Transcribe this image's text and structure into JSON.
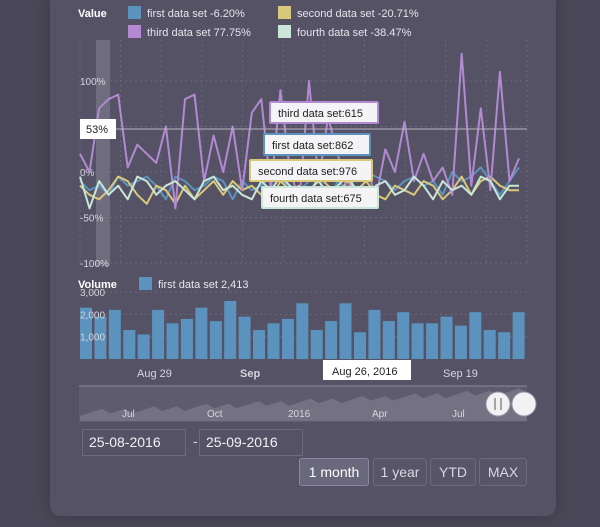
{
  "chart_data": [
    {
      "type": "line",
      "title": "Value",
      "ylabel": "",
      "yticks": [
        "100%",
        "0%",
        "-50%",
        "-100%"
      ],
      "ylim": [
        -100,
        100
      ],
      "crosshair_value_label": "53%",
      "series": [
        {
          "name": "first data set",
          "change": "-6.20%",
          "color": "#5b93be",
          "values": [
            -10,
            -20,
            -15,
            -25,
            -5,
            -15,
            -10,
            -5,
            -15,
            -30,
            -5,
            -10,
            -20,
            -15,
            -5,
            -10,
            -30,
            -10,
            -20,
            -15,
            -5,
            -10,
            -15,
            -20,
            -10,
            -5,
            -30,
            -10,
            -20,
            -5,
            0,
            -5,
            -10,
            -20,
            -10,
            -5,
            -15,
            -10,
            -25,
            0,
            -10,
            -5,
            5,
            -10,
            -25,
            -10,
            5
          ]
        },
        {
          "name": "second data set",
          "change": "-20.71%",
          "color": "#d9c87a",
          "values": [
            -15,
            -25,
            -30,
            -20,
            -5,
            -10,
            -25,
            -35,
            -15,
            -20,
            -35,
            -15,
            -30,
            -20,
            -10,
            -25,
            -10,
            -20,
            -15,
            -25,
            -30,
            -10,
            -20,
            -15,
            -25,
            -5,
            -15,
            -25,
            -10,
            -20,
            -10,
            -25,
            -30,
            -15,
            -20,
            -25,
            -10,
            -15,
            -30,
            -20,
            -5,
            -25,
            -10,
            -5,
            -15,
            -20,
            -20
          ]
        },
        {
          "name": "third data set",
          "change": "77.75%",
          "color": "#b38ad2",
          "values": [
            20,
            0,
            70,
            80,
            85,
            5,
            30,
            20,
            10,
            50,
            -40,
            80,
            85,
            -10,
            40,
            0,
            50,
            -20,
            65,
            80,
            -20,
            90,
            0,
            -30,
            100,
            -10,
            60,
            20,
            -20,
            5,
            10,
            -30,
            25,
            0,
            55,
            -10,
            20,
            -10,
            5,
            -25,
            130,
            -15,
            70,
            -20,
            110,
            -10,
            15
          ]
        },
        {
          "name": "fourth data set",
          "change": "-38.47%",
          "color": "#c9e6d8",
          "values": [
            -5,
            -40,
            -10,
            -25,
            -15,
            -30,
            -5,
            -10,
            -25,
            -15,
            -10,
            -20,
            -30,
            -10,
            -5,
            -20,
            -15,
            -25,
            -30,
            -10,
            -20,
            -5,
            -15,
            -30,
            -20,
            -10,
            -25,
            -15,
            -5,
            -20,
            -30,
            -15,
            -10,
            -25,
            -20,
            -5,
            -15,
            -30,
            -10,
            -20,
            -15,
            -25,
            -5,
            -10,
            -30,
            -15,
            -15
          ]
        }
      ],
      "tooltips": [
        "third data set:615",
        "first data set:862",
        "second data set:976",
        "fourth data set:675"
      ]
    },
    {
      "type": "bar",
      "title": "Volume",
      "series_name": "first data set",
      "series_value": "2,413",
      "color": "#5b93be",
      "yticks": [
        "3,000",
        "2,000",
        "1,000"
      ],
      "ylim": [
        0,
        3500
      ],
      "values": [
        2300,
        1900,
        2200,
        1300,
        1100,
        2200,
        1600,
        1800,
        2300,
        1700,
        2600,
        1900,
        1300,
        1600,
        1800,
        2500,
        1300,
        1700,
        2500,
        1200,
        2200,
        1700,
        2100,
        1600,
        1600,
        1900,
        1500,
        2100,
        1300,
        1200,
        2100
      ],
      "xticks": [
        "Aug 29",
        "Sep",
        "Sep 19"
      ],
      "crosshair_date": "Aug 26, 2016"
    }
  ],
  "navigator": {
    "labels": [
      "Jul",
      "Oct",
      "2016",
      "Apr",
      "Jul"
    ]
  },
  "range": {
    "from": "25-08-2016",
    "to": "25-09-2016",
    "separator": "-",
    "buttons": [
      {
        "label": "1 month",
        "active": true
      },
      {
        "label": "1 year",
        "active": false
      },
      {
        "label": "YTD",
        "active": false
      },
      {
        "label": "MAX",
        "active": false
      }
    ]
  }
}
